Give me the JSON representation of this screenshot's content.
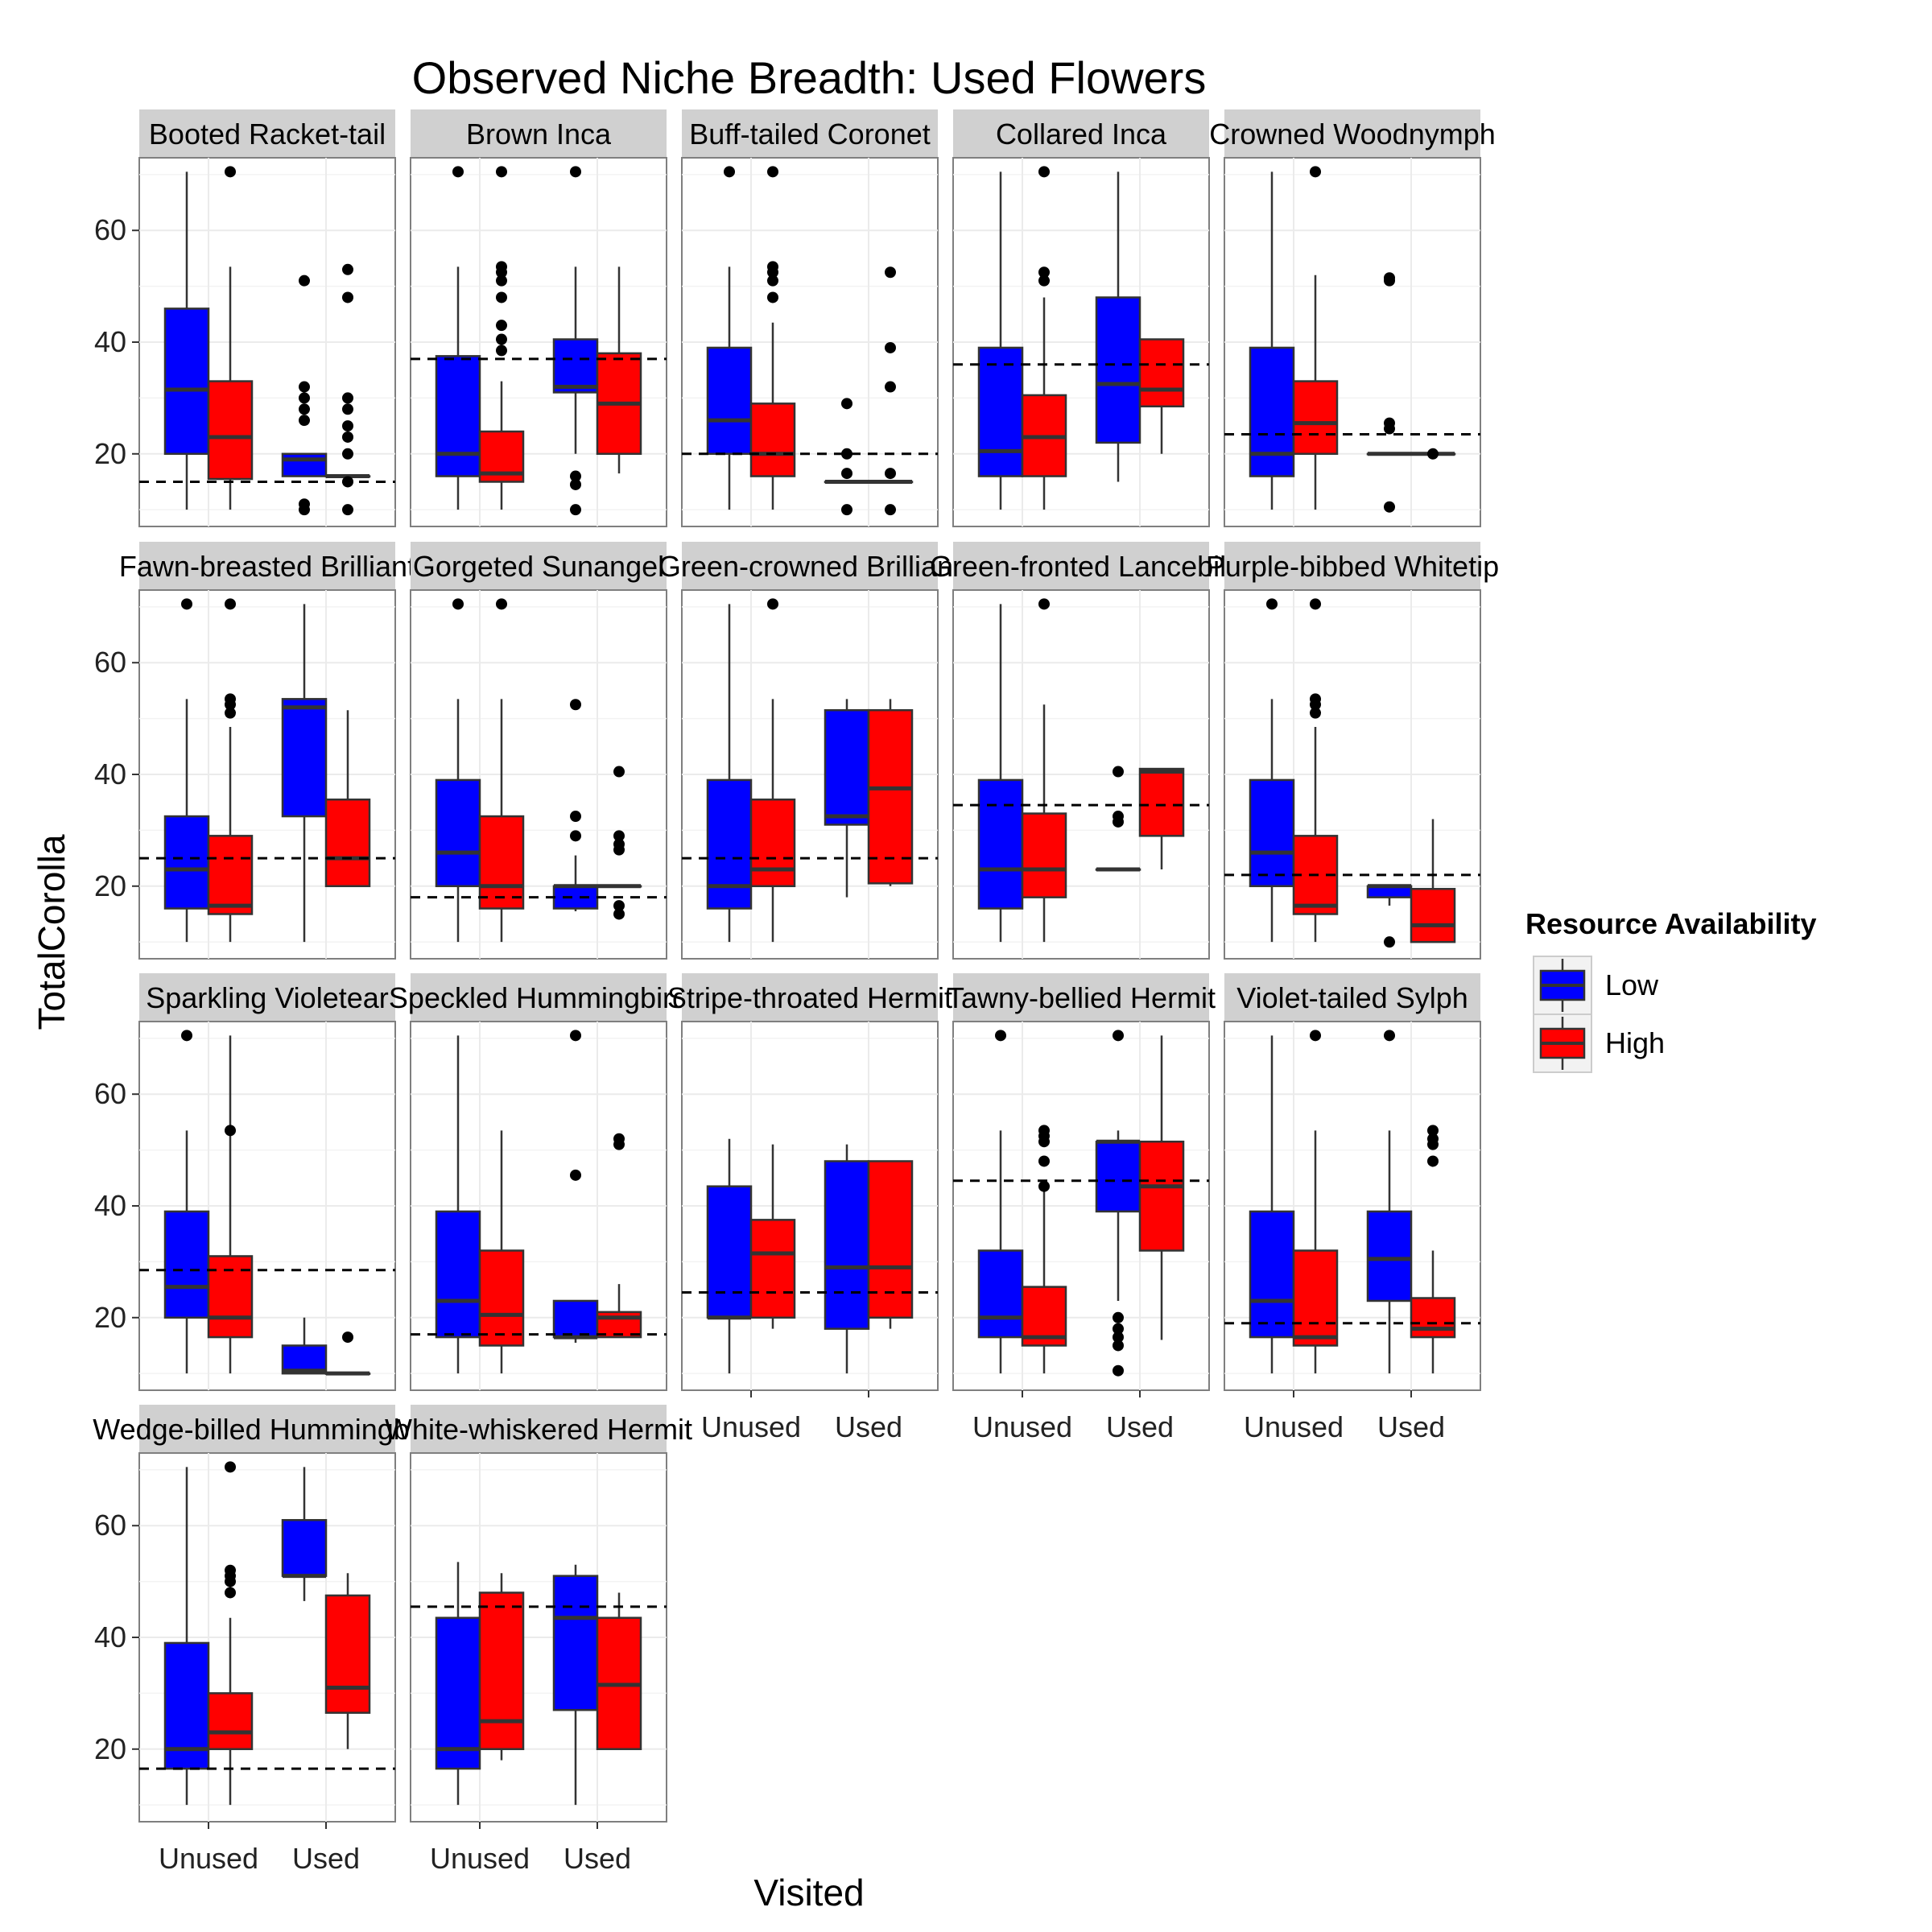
{
  "chart_data": {
    "type": "boxplot",
    "title": "Observed Niche Breadth: Used Flowers",
    "xlabel": "Visited",
    "ylabel": "TotalCorolla",
    "ylim": [
      7,
      73
    ],
    "yticks": [
      20,
      40,
      60
    ],
    "categories": [
      "Unused",
      "Used"
    ],
    "legend": {
      "title": "Resource Availability",
      "position": "right",
      "entries": [
        {
          "name": "Low",
          "color": "#0000ff"
        },
        {
          "name": "High",
          "color": "#ff0000"
        }
      ]
    },
    "panels": [
      {
        "strip": "Booted Racket-tail",
        "hline": 15,
        "boxes": [
          {
            "x": "Unused",
            "group": "Low",
            "lo": 10,
            "q1": 20,
            "med": 31.5,
            "q3": 46,
            "hi": 70.5,
            "out": []
          },
          {
            "x": "Unused",
            "group": "High",
            "lo": 10,
            "q1": 15.5,
            "med": 23,
            "q3": 33,
            "hi": 53.5,
            "out": [
              70.5
            ]
          },
          {
            "x": "Used",
            "group": "Low",
            "lo": 16,
            "q1": 16,
            "med": 19,
            "q3": 20,
            "hi": 20,
            "out": [
              51,
              32,
              30,
              28,
              26,
              10,
              11
            ]
          },
          {
            "x": "Used",
            "group": "High",
            "lo": 16,
            "q1": 16,
            "med": 16,
            "q3": 16,
            "hi": 16,
            "out": [
              53,
              48,
              30,
              28,
              25,
              23,
              20,
              15,
              10
            ]
          }
        ]
      },
      {
        "strip": "Brown Inca",
        "hline": 37,
        "boxes": [
          {
            "x": "Unused",
            "group": "Low",
            "lo": 10,
            "q1": 16,
            "med": 20,
            "q3": 37.5,
            "hi": 53.5,
            "out": [
              70.5
            ]
          },
          {
            "x": "Unused",
            "group": "High",
            "lo": 10,
            "q1": 15,
            "med": 16.5,
            "q3": 24,
            "hi": 33,
            "out": [
              70.5,
              53.5,
              52.5,
              51,
              48,
              43,
              40.5,
              38.5
            ]
          },
          {
            "x": "Used",
            "group": "Low",
            "lo": 20,
            "q1": 31,
            "med": 32,
            "q3": 40.5,
            "hi": 53.5,
            "out": [
              70.5,
              16,
              14.5,
              10
            ]
          },
          {
            "x": "Used",
            "group": "High",
            "lo": 16.5,
            "q1": 20,
            "med": 29,
            "q3": 38,
            "hi": 53.5,
            "out": []
          }
        ]
      },
      {
        "strip": "Buff-tailed Coronet",
        "hline": 20,
        "boxes": [
          {
            "x": "Unused",
            "group": "Low",
            "lo": 10,
            "q1": 20,
            "med": 26,
            "q3": 39,
            "hi": 53.5,
            "out": [
              70.5
            ]
          },
          {
            "x": "Unused",
            "group": "High",
            "lo": 10,
            "q1": 16,
            "med": 20,
            "q3": 29,
            "hi": 43.5,
            "out": [
              70.5,
              53.5,
              52.5,
              51,
              48
            ]
          },
          {
            "x": "Used",
            "group": "Low",
            "lo": 15,
            "q1": 15,
            "med": 15,
            "q3": 15,
            "hi": 15,
            "out": [
              29,
              20,
              16.5,
              10
            ]
          },
          {
            "x": "Used",
            "group": "High",
            "lo": 15,
            "q1": 15,
            "med": 15,
            "q3": 15,
            "hi": 15,
            "out": [
              52.5,
              39,
              32,
              16.5,
              10
            ]
          }
        ]
      },
      {
        "strip": "Collared Inca",
        "hline": 36,
        "boxes": [
          {
            "x": "Unused",
            "group": "Low",
            "lo": 10,
            "q1": 16,
            "med": 20.5,
            "q3": 39,
            "hi": 70.5,
            "out": []
          },
          {
            "x": "Unused",
            "group": "High",
            "lo": 10,
            "q1": 16,
            "med": 23,
            "q3": 30.5,
            "hi": 48,
            "out": [
              70.5,
              52.5,
              51
            ]
          },
          {
            "x": "Used",
            "group": "Low",
            "lo": 15,
            "q1": 22,
            "med": 32.5,
            "q3": 48,
            "hi": 70.5,
            "out": []
          },
          {
            "x": "Used",
            "group": "High",
            "lo": 20,
            "q1": 28.5,
            "med": 31.5,
            "q3": 40.5,
            "hi": 40.5,
            "out": []
          }
        ]
      },
      {
        "strip": "Crowned Woodnymph",
        "hline": 23.5,
        "boxes": [
          {
            "x": "Unused",
            "group": "Low",
            "lo": 10,
            "q1": 16,
            "med": 20,
            "q3": 39,
            "hi": 70.5,
            "out": []
          },
          {
            "x": "Unused",
            "group": "High",
            "lo": 10,
            "q1": 20,
            "med": 25.5,
            "q3": 33,
            "hi": 52,
            "out": [
              70.5
            ]
          },
          {
            "x": "Used",
            "group": "Low",
            "lo": 20,
            "q1": 20,
            "med": 20,
            "q3": 20,
            "hi": 20,
            "out": [
              51.5,
              51,
              25.5,
              24.5,
              10.5
            ]
          },
          {
            "x": "Used",
            "group": "High",
            "lo": 20,
            "q1": 20,
            "med": 20,
            "q3": 20,
            "hi": 20,
            "out": [
              20
            ]
          }
        ]
      },
      {
        "strip": "Fawn-breasted Brilliant",
        "hline": 25,
        "boxes": [
          {
            "x": "Unused",
            "group": "Low",
            "lo": 10,
            "q1": 16,
            "med": 23,
            "q3": 32.5,
            "hi": 53.5,
            "out": [
              70.5
            ]
          },
          {
            "x": "Unused",
            "group": "High",
            "lo": 10,
            "q1": 15,
            "med": 16.5,
            "q3": 29,
            "hi": 48.5,
            "out": [
              70.5,
              53.5,
              52.5,
              51
            ]
          },
          {
            "x": "Used",
            "group": "Low",
            "lo": 10,
            "q1": 32.5,
            "med": 52,
            "q3": 53.5,
            "hi": 70.5,
            "out": []
          },
          {
            "x": "Used",
            "group": "High",
            "lo": 20,
            "q1": 20,
            "med": 25,
            "q3": 35.5,
            "hi": 51.5,
            "out": []
          }
        ]
      },
      {
        "strip": "Gorgeted Sunangel",
        "hline": 18,
        "boxes": [
          {
            "x": "Unused",
            "group": "Low",
            "lo": 10,
            "q1": 20,
            "med": 26,
            "q3": 39,
            "hi": 53.5,
            "out": [
              70.5
            ]
          },
          {
            "x": "Unused",
            "group": "High",
            "lo": 10,
            "q1": 16,
            "med": 20,
            "q3": 32.5,
            "hi": 53.5,
            "out": [
              70.5
            ]
          },
          {
            "x": "Used",
            "group": "Low",
            "lo": 15.5,
            "q1": 16,
            "med": 20,
            "q3": 20,
            "hi": 25.5,
            "out": [
              52.5,
              32.5,
              29
            ]
          },
          {
            "x": "Used",
            "group": "High",
            "lo": 20,
            "q1": 20,
            "med": 20,
            "q3": 20,
            "hi": 20,
            "out": [
              40.5,
              29,
              27.5,
              26.5,
              16.5,
              15
            ]
          }
        ]
      },
      {
        "strip": "Green-crowned Brilliant",
        "hline": 25,
        "boxes": [
          {
            "x": "Unused",
            "group": "Low",
            "lo": 10,
            "q1": 16,
            "med": 20,
            "q3": 39,
            "hi": 70.5,
            "out": []
          },
          {
            "x": "Unused",
            "group": "High",
            "lo": 10,
            "q1": 20,
            "med": 23,
            "q3": 35.5,
            "hi": 53.5,
            "out": [
              70.5
            ]
          },
          {
            "x": "Used",
            "group": "Low",
            "lo": 18,
            "q1": 31,
            "med": 32.5,
            "q3": 51.5,
            "hi": 53.5,
            "out": []
          },
          {
            "x": "Used",
            "group": "High",
            "lo": 20,
            "q1": 20.5,
            "med": 37.5,
            "q3": 51.5,
            "hi": 53.5,
            "out": []
          }
        ]
      },
      {
        "strip": "Green-fronted Lancebill",
        "hline": 34.5,
        "boxes": [
          {
            "x": "Unused",
            "group": "Low",
            "lo": 10,
            "q1": 16,
            "med": 23,
            "q3": 39,
            "hi": 70.5,
            "out": []
          },
          {
            "x": "Unused",
            "group": "High",
            "lo": 10,
            "q1": 18,
            "med": 23,
            "q3": 33,
            "hi": 52.5,
            "out": [
              70.5
            ]
          },
          {
            "x": "Used",
            "group": "Low",
            "lo": 23,
            "q1": 23,
            "med": 23,
            "q3": 23,
            "hi": 23,
            "out": [
              40.5,
              32.5,
              31.5
            ]
          },
          {
            "x": "Used",
            "group": "High",
            "lo": 23,
            "q1": 29,
            "med": 40.5,
            "q3": 41,
            "hi": 41,
            "out": []
          }
        ]
      },
      {
        "strip": "Purple-bibbed Whitetip",
        "hline": 22,
        "boxes": [
          {
            "x": "Unused",
            "group": "Low",
            "lo": 10,
            "q1": 20,
            "med": 26,
            "q3": 39,
            "hi": 53.5,
            "out": [
              70.5
            ]
          },
          {
            "x": "Unused",
            "group": "High",
            "lo": 10,
            "q1": 15,
            "med": 16.5,
            "q3": 29,
            "hi": 48.5,
            "out": [
              70.5,
              53.5,
              52.5,
              51
            ]
          },
          {
            "x": "Used",
            "group": "Low",
            "lo": 16.5,
            "q1": 18,
            "med": 20,
            "q3": 20,
            "hi": 20,
            "out": [
              10
            ]
          },
          {
            "x": "Used",
            "group": "High",
            "lo": 10,
            "q1": 10,
            "med": 13,
            "q3": 19.5,
            "hi": 32,
            "out": []
          }
        ]
      },
      {
        "strip": "Sparkling Violetear",
        "hline": 28.5,
        "boxes": [
          {
            "x": "Unused",
            "group": "Low",
            "lo": 10,
            "q1": 20,
            "med": 25.5,
            "q3": 39,
            "hi": 53.5,
            "out": [
              70.5
            ]
          },
          {
            "x": "Unused",
            "group": "High",
            "lo": 10,
            "q1": 16.5,
            "med": 20,
            "q3": 31,
            "hi": 70.5,
            "out": [
              53.5
            ]
          },
          {
            "x": "Used",
            "group": "Low",
            "lo": 10,
            "q1": 10,
            "med": 10.5,
            "q3": 15,
            "hi": 20,
            "out": []
          },
          {
            "x": "Used",
            "group": "High",
            "lo": 10,
            "q1": 10,
            "med": 10,
            "q3": 10,
            "hi": 10,
            "out": [
              16.5
            ]
          }
        ]
      },
      {
        "strip": "Speckled Hummingbird",
        "hline": 17,
        "boxes": [
          {
            "x": "Unused",
            "group": "Low",
            "lo": 10,
            "q1": 16.5,
            "med": 23,
            "q3": 39,
            "hi": 70.5,
            "out": []
          },
          {
            "x": "Unused",
            "group": "High",
            "lo": 10,
            "q1": 15,
            "med": 20.5,
            "q3": 32,
            "hi": 53.5,
            "out": []
          },
          {
            "x": "Used",
            "group": "Low",
            "lo": 15.5,
            "q1": 16.5,
            "med": 16.5,
            "q3": 23,
            "hi": 23,
            "out": [
              70.5,
              45.5
            ]
          },
          {
            "x": "Used",
            "group": "High",
            "lo": 16.5,
            "q1": 16.5,
            "med": 20,
            "q3": 21,
            "hi": 26,
            "out": [
              52,
              51
            ]
          }
        ]
      },
      {
        "strip": "Stripe-throated Hermit",
        "hline": 24.5,
        "boxes": [
          {
            "x": "Unused",
            "group": "Low",
            "lo": 10,
            "q1": 20,
            "med": 20,
            "q3": 43.5,
            "hi": 52,
            "out": []
          },
          {
            "x": "Unused",
            "group": "High",
            "lo": 18,
            "q1": 20,
            "med": 31.5,
            "q3": 37.5,
            "hi": 51,
            "out": []
          },
          {
            "x": "Used",
            "group": "Low",
            "lo": 10,
            "q1": 18,
            "med": 29,
            "q3": 48,
            "hi": 51,
            "out": []
          },
          {
            "x": "Used",
            "group": "High",
            "lo": 18,
            "q1": 20,
            "med": 29,
            "q3": 48,
            "hi": 48,
            "out": []
          }
        ]
      },
      {
        "strip": "Tawny-bellied Hermit",
        "hline": 44.5,
        "boxes": [
          {
            "x": "Unused",
            "group": "Low",
            "lo": 10,
            "q1": 16.5,
            "med": 20,
            "q3": 32,
            "hi": 53.5,
            "out": [
              70.5
            ]
          },
          {
            "x": "Unused",
            "group": "High",
            "lo": 10,
            "q1": 15,
            "med": 16.5,
            "q3": 25.5,
            "hi": 43.5,
            "out": [
              53.5,
              52.5,
              51.5,
              48,
              43.5
            ]
          },
          {
            "x": "Used",
            "group": "Low",
            "lo": 23,
            "q1": 39,
            "med": 51.5,
            "q3": 51.5,
            "hi": 53.5,
            "out": [
              70.5,
              20,
              18,
              16.5,
              15,
              10.5
            ]
          },
          {
            "x": "Used",
            "group": "High",
            "lo": 16,
            "q1": 32,
            "med": 43.5,
            "q3": 51.5,
            "hi": 70.5,
            "out": []
          }
        ]
      },
      {
        "strip": "Violet-tailed Sylph",
        "hline": 19,
        "boxes": [
          {
            "x": "Unused",
            "group": "Low",
            "lo": 10,
            "q1": 16.5,
            "med": 23,
            "q3": 39,
            "hi": 70.5,
            "out": []
          },
          {
            "x": "Unused",
            "group": "High",
            "lo": 10,
            "q1": 15,
            "med": 16.5,
            "q3": 32,
            "hi": 53.5,
            "out": [
              70.5
            ]
          },
          {
            "x": "Used",
            "group": "Low",
            "lo": 10,
            "q1": 23,
            "med": 30.5,
            "q3": 39,
            "hi": 53.5,
            "out": [
              70.5
            ]
          },
          {
            "x": "Used",
            "group": "High",
            "lo": 10,
            "q1": 16.5,
            "med": 18,
            "q3": 23.5,
            "hi": 32,
            "out": [
              53.5,
              52,
              51,
              48
            ]
          }
        ]
      },
      {
        "strip": "Wedge-billed Hummingbird",
        "hline": 16.5,
        "boxes": [
          {
            "x": "Unused",
            "group": "Low",
            "lo": 10,
            "q1": 16.5,
            "med": 20,
            "q3": 39,
            "hi": 70.5,
            "out": []
          },
          {
            "x": "Unused",
            "group": "High",
            "lo": 10,
            "q1": 20,
            "med": 23,
            "q3": 30,
            "hi": 43.5,
            "out": [
              70.5,
              52,
              51,
              50,
              48
            ]
          },
          {
            "x": "Used",
            "group": "Low",
            "lo": 46.5,
            "q1": 51,
            "med": 51,
            "q3": 61,
            "hi": 70.5,
            "out": []
          },
          {
            "x": "Used",
            "group": "High",
            "lo": 20,
            "q1": 26.5,
            "med": 31,
            "q3": 47.5,
            "hi": 51.5,
            "out": []
          }
        ]
      },
      {
        "strip": "White-whiskered Hermit",
        "hline": 45.5,
        "boxes": [
          {
            "x": "Unused",
            "group": "Low",
            "lo": 10,
            "q1": 16.5,
            "med": 20,
            "q3": 43.5,
            "hi": 53.5,
            "out": []
          },
          {
            "x": "Unused",
            "group": "High",
            "lo": 18,
            "q1": 20,
            "med": 25,
            "q3": 48,
            "hi": 51.5,
            "out": []
          },
          {
            "x": "Used",
            "group": "Low",
            "lo": 10,
            "q1": 27,
            "med": 43.5,
            "q3": 51,
            "hi": 53,
            "out": []
          },
          {
            "x": "Used",
            "group": "High",
            "lo": 20,
            "q1": 20,
            "med": 31.5,
            "q3": 43.5,
            "hi": 48,
            "out": []
          }
        ]
      }
    ]
  }
}
